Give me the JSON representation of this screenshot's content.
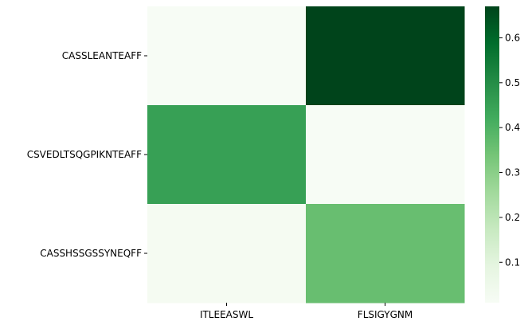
{
  "chart_data": {
    "type": "heatmap",
    "title": "",
    "xlabel": "",
    "ylabel": "",
    "x_categories": [
      "ITLEEASWL",
      "FLSIGYGNM"
    ],
    "y_categories": [
      "CASSLEANTEAFF",
      "CSVEDLTSQGPIKNTEAFF",
      "CASSHSSGSSYNEQFF"
    ],
    "values": [
      [
        0.01,
        0.67
      ],
      [
        0.45,
        0.01
      ],
      [
        0.02,
        0.36
      ]
    ],
    "colorbar": {
      "min": 0.01,
      "max": 0.67,
      "ticks": [
        0.1,
        0.2,
        0.3,
        0.4,
        0.5,
        0.6
      ],
      "tick_labels": [
        "0.1",
        "0.2",
        "0.3",
        "0.4",
        "0.5",
        "0.6"
      ]
    },
    "colormap": "Greens",
    "colormap_stops": [
      "#f7fcf5",
      "#e5f5e0",
      "#c7e9c0",
      "#a1d99b",
      "#74c476",
      "#41ab5d",
      "#238b45",
      "#006d2c",
      "#00441b"
    ],
    "grid": false,
    "legend": "colorbar-right"
  }
}
